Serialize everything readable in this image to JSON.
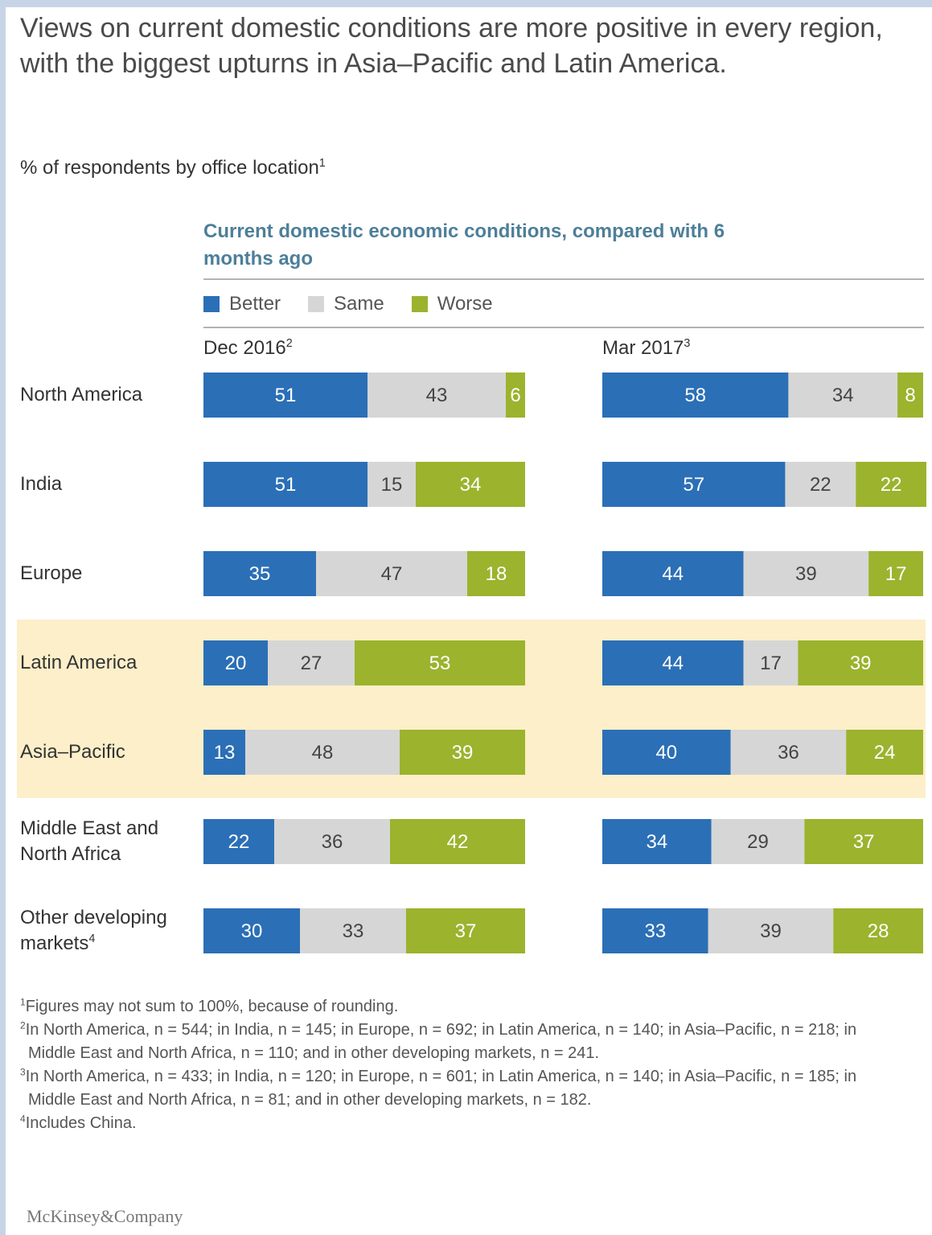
{
  "title": "Views on current domestic conditions are more positive in every region, with the biggest upturns in Asia–Pacific and Latin America.",
  "subtitle": "% of respondents by office location",
  "subtitle_sup": "1",
  "chart_heading": "Current domestic economic conditions, compared with 6 months ago",
  "colors": {
    "better": "#2b6fb6",
    "same": "#d6d6d6",
    "worse": "#9bb32d",
    "highlight": "#fcefc9"
  },
  "legend": [
    {
      "label": "Better",
      "color": "#2b6fb6"
    },
    {
      "label": "Same",
      "color": "#d6d6d6"
    },
    {
      "label": "Worse",
      "color": "#9bb32d"
    }
  ],
  "periods": [
    {
      "label": "Dec 2016",
      "sup": "2"
    },
    {
      "label": "Mar 2017",
      "sup": "3"
    }
  ],
  "chart_data": {
    "type": "bar",
    "orientation": "horizontal",
    "stacked": true,
    "categories": [
      "North America",
      "India",
      "Europe",
      "Latin America",
      "Asia–Pacific",
      "Middle East and North Africa",
      "Other developing markets"
    ],
    "category_sups": [
      "",
      "",
      "",
      "",
      "",
      "",
      "4"
    ],
    "highlighted": [
      "Latin America",
      "Asia–Pacific"
    ],
    "panels": [
      {
        "label": "Dec 2016",
        "series": [
          {
            "name": "Better",
            "values": [
              51,
              51,
              35,
              20,
              13,
              22,
              30
            ]
          },
          {
            "name": "Same",
            "values": [
              43,
              15,
              47,
              27,
              48,
              36,
              33
            ]
          },
          {
            "name": "Worse",
            "values": [
              6,
              34,
              18,
              53,
              39,
              42,
              37
            ]
          }
        ]
      },
      {
        "label": "Mar 2017",
        "series": [
          {
            "name": "Better",
            "values": [
              58,
              57,
              44,
              44,
              40,
              34,
              33
            ]
          },
          {
            "name": "Same",
            "values": [
              34,
              22,
              39,
              17,
              36,
              29,
              39
            ]
          },
          {
            "name": "Worse",
            "values": [
              8,
              22,
              17,
              39,
              24,
              37,
              28
            ]
          }
        ]
      }
    ],
    "xlim": [
      0,
      100
    ],
    "legend_position": "top"
  },
  "footnotes": [
    {
      "mark": "1",
      "text": "Figures may not sum to 100%, because of rounding."
    },
    {
      "mark": "2",
      "text": "In North America, n = 544; in India, n = 145; in Europe, n = 692; in Latin America, n = 140; in Asia–Pacific, n = 218; in Middle East and North Africa, n = 110; and in other developing markets, n = 241."
    },
    {
      "mark": "3",
      "text": "In North America, n = 433; in India, n = 120; in Europe, n = 601; in Latin America, n = 140; in Asia–Pacific, n = 185; in Middle East and North Africa, n = 81; and in other developing markets, n = 182."
    },
    {
      "mark": "4",
      "text": "Includes China."
    }
  ],
  "logo": "McKinsey&Company"
}
